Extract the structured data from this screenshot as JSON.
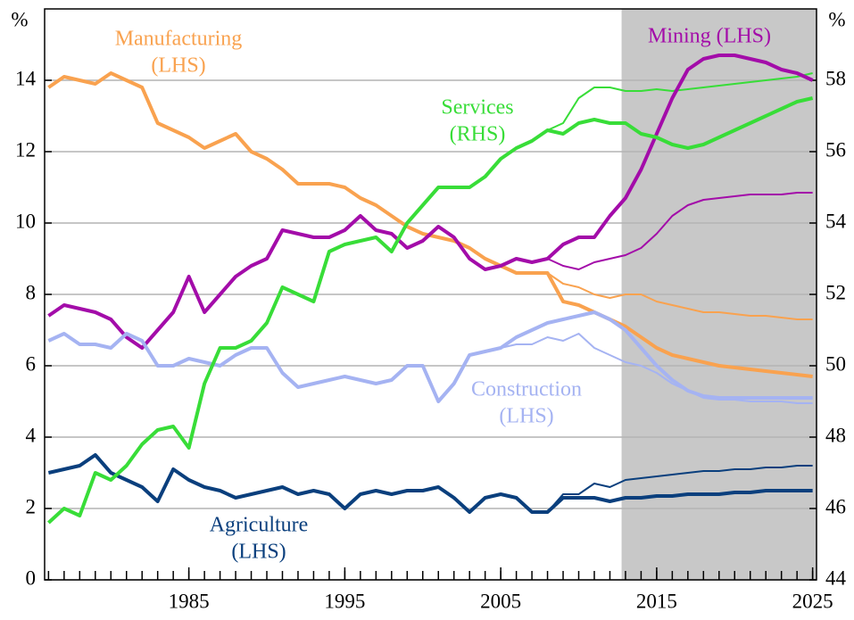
{
  "chart_data": {
    "type": "line",
    "ylabel": "%",
    "y2label": "%",
    "xlim": [
      1975.75,
      2025.25
    ],
    "xticks": [
      1985,
      1995,
      2005,
      2015,
      2025
    ],
    "xminorticks": [
      1976,
      1977,
      1978,
      1979,
      1980,
      1981,
      1982,
      1983,
      1984,
      1985,
      1986,
      1987,
      1988,
      1989,
      1990,
      1991,
      1992,
      1993,
      1994,
      1995,
      1996,
      1997,
      1998,
      1999,
      2000,
      2001,
      2002,
      2003,
      2004,
      2005,
      2006,
      2007,
      2008,
      2009,
      2010,
      2011,
      2012,
      2013,
      2014,
      2015,
      2016,
      2017,
      2018,
      2019,
      2020,
      2021,
      2022,
      2023,
      2024,
      2025
    ],
    "ylim": [
      0,
      16
    ],
    "yticks": [
      0,
      2,
      4,
      6,
      8,
      10,
      12,
      14
    ],
    "y2lim": [
      44,
      60
    ],
    "y2ticks": [
      44,
      46,
      48,
      50,
      52,
      54,
      56,
      58
    ],
    "grid": true,
    "shaded_from": 2012.75,
    "shade_color": "#c8c8c8",
    "x": [
      1976,
      1977,
      1978,
      1979,
      1980,
      1981,
      1982,
      1983,
      1984,
      1985,
      1986,
      1987,
      1988,
      1989,
      1990,
      1991,
      1992,
      1993,
      1994,
      1995,
      1996,
      1997,
      1998,
      1999,
      2000,
      2001,
      2002,
      2003,
      2004,
      2005,
      2006,
      2007,
      2008,
      2009,
      2010,
      2011,
      2012,
      2013,
      2014,
      2015,
      2016,
      2017,
      2018,
      2019,
      2020,
      2021,
      2022,
      2023,
      2024,
      2025
    ],
    "series": [
      {
        "x": [
          2008,
          2009,
          2010,
          2011,
          2012,
          2013,
          2014,
          2015,
          2016,
          2017,
          2018,
          2019,
          2020,
          2021,
          2022,
          2023,
          2024,
          2025
        ],
        "color": "#f9a24f",
        "line_width": 2,
        "values": [
          8.6,
          8.3,
          8.2,
          8.0,
          7.9,
          8.0,
          8.0,
          7.8,
          7.7,
          7.6,
          7.5,
          7.5,
          7.45,
          7.4,
          7.4,
          7.35,
          7.3,
          7.3
        ]
      },
      {
        "x": [
          2008,
          2009,
          2010,
          2011,
          2012,
          2013,
          2014,
          2015,
          2016,
          2017,
          2018,
          2019,
          2020,
          2021,
          2022,
          2023,
          2024,
          2025
        ],
        "color": "#a30ca9",
        "line_width": 2,
        "values": [
          9.0,
          8.8,
          8.7,
          8.9,
          9.0,
          9.1,
          9.3,
          9.7,
          10.2,
          10.5,
          10.65,
          10.7,
          10.75,
          10.8,
          10.8,
          10.8,
          10.85,
          10.85
        ]
      },
      {
        "x": [
          2005,
          2006,
          2007,
          2008,
          2009,
          2010,
          2011,
          2012,
          2013,
          2014,
          2015,
          2016,
          2017,
          2018,
          2019,
          2020,
          2021,
          2022,
          2023,
          2024,
          2025
        ],
        "color": "#a5b3f2",
        "line_width": 2,
        "values": [
          6.5,
          6.6,
          6.6,
          6.8,
          6.7,
          6.9,
          6.5,
          6.3,
          6.1,
          6.0,
          5.8,
          5.5,
          5.3,
          5.1,
          5.05,
          5.05,
          5.0,
          5.0,
          5.0,
          4.95,
          4.95
        ]
      },
      {
        "x": [
          2008,
          2009,
          2010,
          2011,
          2012,
          2013,
          2014,
          2015,
          2016,
          2017,
          2018,
          2019,
          2020,
          2021,
          2022,
          2023,
          2024,
          2025
        ],
        "color": "#0a3f7d",
        "line_width": 2,
        "values": [
          1.9,
          2.4,
          2.4,
          2.7,
          2.6,
          2.8,
          2.85,
          2.9,
          2.95,
          3.0,
          3.05,
          3.05,
          3.1,
          3.1,
          3.15,
          3.15,
          3.2,
          3.2
        ]
      },
      {
        "x": [
          2008,
          2009,
          2010,
          2011,
          2012,
          2013,
          2014,
          2015,
          2016,
          2017,
          2018,
          2019,
          2020,
          2021,
          2022,
          2023,
          2024,
          2025
        ],
        "color": "#38dd38",
        "line_width": 2,
        "axis": "y2",
        "values": [
          56.6,
          56.8,
          57.5,
          57.8,
          57.8,
          57.7,
          57.7,
          57.75,
          57.7,
          57.75,
          57.8,
          57.85,
          57.9,
          57.95,
          58.0,
          58.05,
          58.1,
          58.2
        ]
      },
      {
        "name": [
          "Manufacturing",
          "(LHS)"
        ],
        "color": "#f9a24f",
        "line_width": 4,
        "values": [
          13.8,
          14.1,
          14.0,
          13.9,
          14.2,
          14.0,
          13.8,
          12.8,
          12.6,
          12.4,
          12.1,
          12.3,
          12.5,
          12.0,
          11.8,
          11.5,
          11.1,
          11.1,
          11.1,
          11.0,
          10.7,
          10.5,
          10.2,
          9.9,
          9.7,
          9.6,
          9.5,
          9.3,
          9.0,
          8.8,
          8.6,
          8.6,
          8.6,
          7.8,
          7.7,
          7.5,
          7.3,
          7.1,
          6.8,
          6.5,
          6.3,
          6.2,
          6.1,
          6.0,
          5.95,
          5.9,
          5.85,
          5.8,
          5.75,
          5.7
        ]
      },
      {
        "name": [
          "Mining (LHS)"
        ],
        "color": "#a30ca9",
        "line_width": 4,
        "values": [
          7.4,
          7.7,
          7.6,
          7.5,
          7.3,
          6.8,
          6.5,
          7.0,
          7.5,
          8.5,
          7.5,
          8.0,
          8.5,
          8.8,
          9.0,
          9.8,
          9.7,
          9.6,
          9.6,
          9.8,
          10.2,
          9.8,
          9.7,
          9.3,
          9.5,
          9.9,
          9.6,
          9.0,
          8.7,
          8.8,
          9.0,
          8.9,
          9.0,
          9.4,
          9.6,
          9.6,
          10.2,
          10.7,
          11.5,
          12.5,
          13.5,
          14.3,
          14.6,
          14.7,
          14.7,
          14.6,
          14.5,
          14.3,
          14.2,
          14.0
        ]
      },
      {
        "name": [
          "Construction",
          "(LHS)"
        ],
        "color": "#a5b3f2",
        "line_width": 4,
        "values": [
          6.7,
          6.9,
          6.6,
          6.6,
          6.5,
          6.9,
          6.7,
          6.0,
          6.0,
          6.2,
          6.1,
          6.0,
          6.3,
          6.5,
          6.5,
          5.8,
          5.4,
          5.5,
          5.6,
          5.7,
          5.6,
          5.5,
          5.6,
          6.0,
          6.0,
          5.0,
          5.5,
          6.3,
          6.4,
          6.5,
          6.8,
          7.0,
          7.2,
          7.3,
          7.4,
          7.5,
          7.3,
          7.0,
          6.5,
          6.0,
          5.6,
          5.3,
          5.15,
          5.1,
          5.1,
          5.1,
          5.1,
          5.1,
          5.1,
          5.1
        ]
      },
      {
        "name": [
          "Agriculture",
          "(LHS)"
        ],
        "color": "#0a3f7d",
        "line_width": 4,
        "values": [
          3.0,
          3.1,
          3.2,
          3.5,
          3.0,
          2.8,
          2.6,
          2.2,
          3.1,
          2.8,
          2.6,
          2.5,
          2.3,
          2.4,
          2.5,
          2.6,
          2.4,
          2.5,
          2.4,
          2.0,
          2.4,
          2.5,
          2.4,
          2.5,
          2.5,
          2.6,
          2.3,
          1.9,
          2.3,
          2.4,
          2.3,
          1.9,
          1.9,
          2.3,
          2.3,
          2.3,
          2.2,
          2.3,
          2.3,
          2.35,
          2.35,
          2.4,
          2.4,
          2.4,
          2.45,
          2.45,
          2.5,
          2.5,
          2.5,
          2.5
        ]
      },
      {
        "name": [
          "Services",
          "(RHS)"
        ],
        "color": "#38dd38",
        "line_width": 4,
        "axis": "y2",
        "values": [
          45.6,
          46.0,
          45.8,
          47.0,
          46.8,
          47.2,
          47.8,
          48.2,
          48.3,
          47.7,
          49.5,
          50.5,
          50.5,
          50.7,
          51.2,
          52.2,
          52.0,
          51.8,
          53.2,
          53.4,
          53.5,
          53.6,
          53.2,
          54.0,
          54.5,
          55.0,
          55.0,
          55.0,
          55.3,
          55.8,
          56.1,
          56.3,
          56.6,
          56.5,
          56.8,
          56.9,
          56.8,
          56.8,
          56.5,
          56.4,
          56.2,
          56.1,
          56.2,
          56.4,
          56.6,
          56.8,
          57.0,
          57.2,
          57.4,
          57.5
        ]
      }
    ]
  }
}
